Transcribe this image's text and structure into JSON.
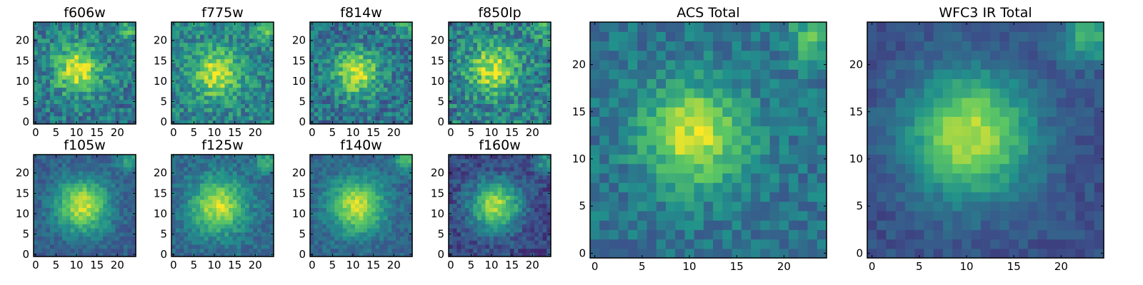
{
  "chart_data": {
    "type": "heatmap",
    "colormap": "viridis",
    "pixels_per_side": 25,
    "colormap_stops": [
      "#440154",
      "#3b528b",
      "#21918c",
      "#5ec962",
      "#fde725"
    ],
    "panels": [
      {
        "id": "f606w",
        "title": "f606w",
        "xticks": [
          "0",
          "5",
          "10",
          "15",
          "20"
        ],
        "yticks": [
          "0",
          "5",
          "10",
          "15",
          "20"
        ],
        "xlim": [
          0,
          24
        ],
        "ylim": [
          0,
          24
        ],
        "source": {
          "cx": 10.5,
          "cy": 13,
          "sigma": 4.0,
          "amp": 0.55
        },
        "base": 0.4,
        "noise": 0.18,
        "corner": 0.25,
        "seed": 11
      },
      {
        "id": "f775w",
        "title": "f775w",
        "xticks": [
          "0",
          "5",
          "10",
          "15",
          "20"
        ],
        "yticks": [
          "0",
          "5",
          "10",
          "15",
          "20"
        ],
        "xlim": [
          0,
          24
        ],
        "ylim": [
          0,
          24
        ],
        "source": {
          "cx": 10.5,
          "cy": 12,
          "sigma": 4.0,
          "amp": 0.5
        },
        "base": 0.45,
        "noise": 0.17,
        "corner": 0.3,
        "seed": 23
      },
      {
        "id": "f814w",
        "title": "f814w",
        "xticks": [
          "0",
          "5",
          "10",
          "15",
          "20"
        ],
        "yticks": [
          "0",
          "5",
          "10",
          "15",
          "20"
        ],
        "xlim": [
          0,
          24
        ],
        "ylim": [
          0,
          24
        ],
        "source": {
          "cx": 11,
          "cy": 12,
          "sigma": 3.8,
          "amp": 0.55
        },
        "base": 0.38,
        "noise": 0.18,
        "corner": 0.2,
        "seed": 37
      },
      {
        "id": "f850lp",
        "title": "f850lp",
        "xticks": [
          "0",
          "5",
          "10",
          "15",
          "20"
        ],
        "yticks": [
          "0",
          "5",
          "10",
          "15",
          "20"
        ],
        "xlim": [
          0,
          24
        ],
        "ylim": [
          0,
          24
        ],
        "source": {
          "cx": 10.5,
          "cy": 13,
          "sigma": 4.2,
          "amp": 0.5
        },
        "base": 0.42,
        "noise": 0.2,
        "corner": 0.2,
        "seed": 41
      },
      {
        "id": "f105w",
        "title": "f105w",
        "xticks": [
          "0",
          "5",
          "10",
          "15",
          "20"
        ],
        "yticks": [
          "0",
          "5",
          "10",
          "15",
          "20"
        ],
        "xlim": [
          0,
          24
        ],
        "ylim": [
          0,
          24
        ],
        "source": {
          "cx": 11.5,
          "cy": 12,
          "sigma": 4.5,
          "amp": 0.62
        },
        "base": 0.3,
        "noise": 0.09,
        "corner": 0.3,
        "seed": 53
      },
      {
        "id": "f125w",
        "title": "f125w",
        "xticks": [
          "0",
          "5",
          "10",
          "15",
          "20"
        ],
        "yticks": [
          "0",
          "5",
          "10",
          "15",
          "20"
        ],
        "xlim": [
          0,
          24
        ],
        "ylim": [
          0,
          24
        ],
        "source": {
          "cx": 11,
          "cy": 12,
          "sigma": 4.6,
          "amp": 0.58
        },
        "base": 0.34,
        "noise": 0.1,
        "corner": 0.3,
        "seed": 67
      },
      {
        "id": "f140w",
        "title": "f140w",
        "xticks": [
          "0",
          "5",
          "10",
          "15",
          "20"
        ],
        "yticks": [
          "0",
          "5",
          "10",
          "15",
          "20"
        ],
        "xlim": [
          0,
          24
        ],
        "ylim": [
          0,
          24
        ],
        "source": {
          "cx": 11,
          "cy": 12,
          "sigma": 4.6,
          "amp": 0.6
        },
        "base": 0.32,
        "noise": 0.09,
        "corner": 0.35,
        "seed": 71
      },
      {
        "id": "f160w",
        "title": "f160w",
        "xticks": [
          "0",
          "5",
          "10",
          "15",
          "20"
        ],
        "yticks": [
          "0",
          "5",
          "10",
          "15",
          "20"
        ],
        "xlim": [
          0,
          24
        ],
        "ylim": [
          0,
          24
        ],
        "source": {
          "cx": 11,
          "cy": 12,
          "sigma": 4.2,
          "amp": 0.66
        },
        "base": 0.22,
        "noise": 0.11,
        "corner": 0.3,
        "seed": 83
      },
      {
        "id": "acs-total",
        "title": "ACS Total",
        "xticks": [
          "0",
          "5",
          "10",
          "15",
          "20"
        ],
        "yticks": [
          "0",
          "5",
          "10",
          "15",
          "20"
        ],
        "xlim": [
          0,
          24
        ],
        "ylim": [
          0,
          24
        ],
        "source": {
          "cx": 10.5,
          "cy": 12.5,
          "sigma": 3.8,
          "amp": 0.55
        },
        "base": 0.38,
        "noise": 0.12,
        "corner": 0.3,
        "seed": 97
      },
      {
        "id": "wfc3-ir-total",
        "title": "WFC3 IR Total",
        "xticks": [
          "0",
          "5",
          "10",
          "15",
          "20"
        ],
        "yticks": [
          "0",
          "5",
          "10",
          "15",
          "20"
        ],
        "xlim": [
          0,
          24
        ],
        "ylim": [
          0,
          24
        ],
        "source": {
          "cx": 10.5,
          "cy": 12.5,
          "sigma": 4.5,
          "amp": 0.65
        },
        "base": 0.25,
        "noise": 0.07,
        "corner": 0.4,
        "seed": 101
      }
    ]
  }
}
